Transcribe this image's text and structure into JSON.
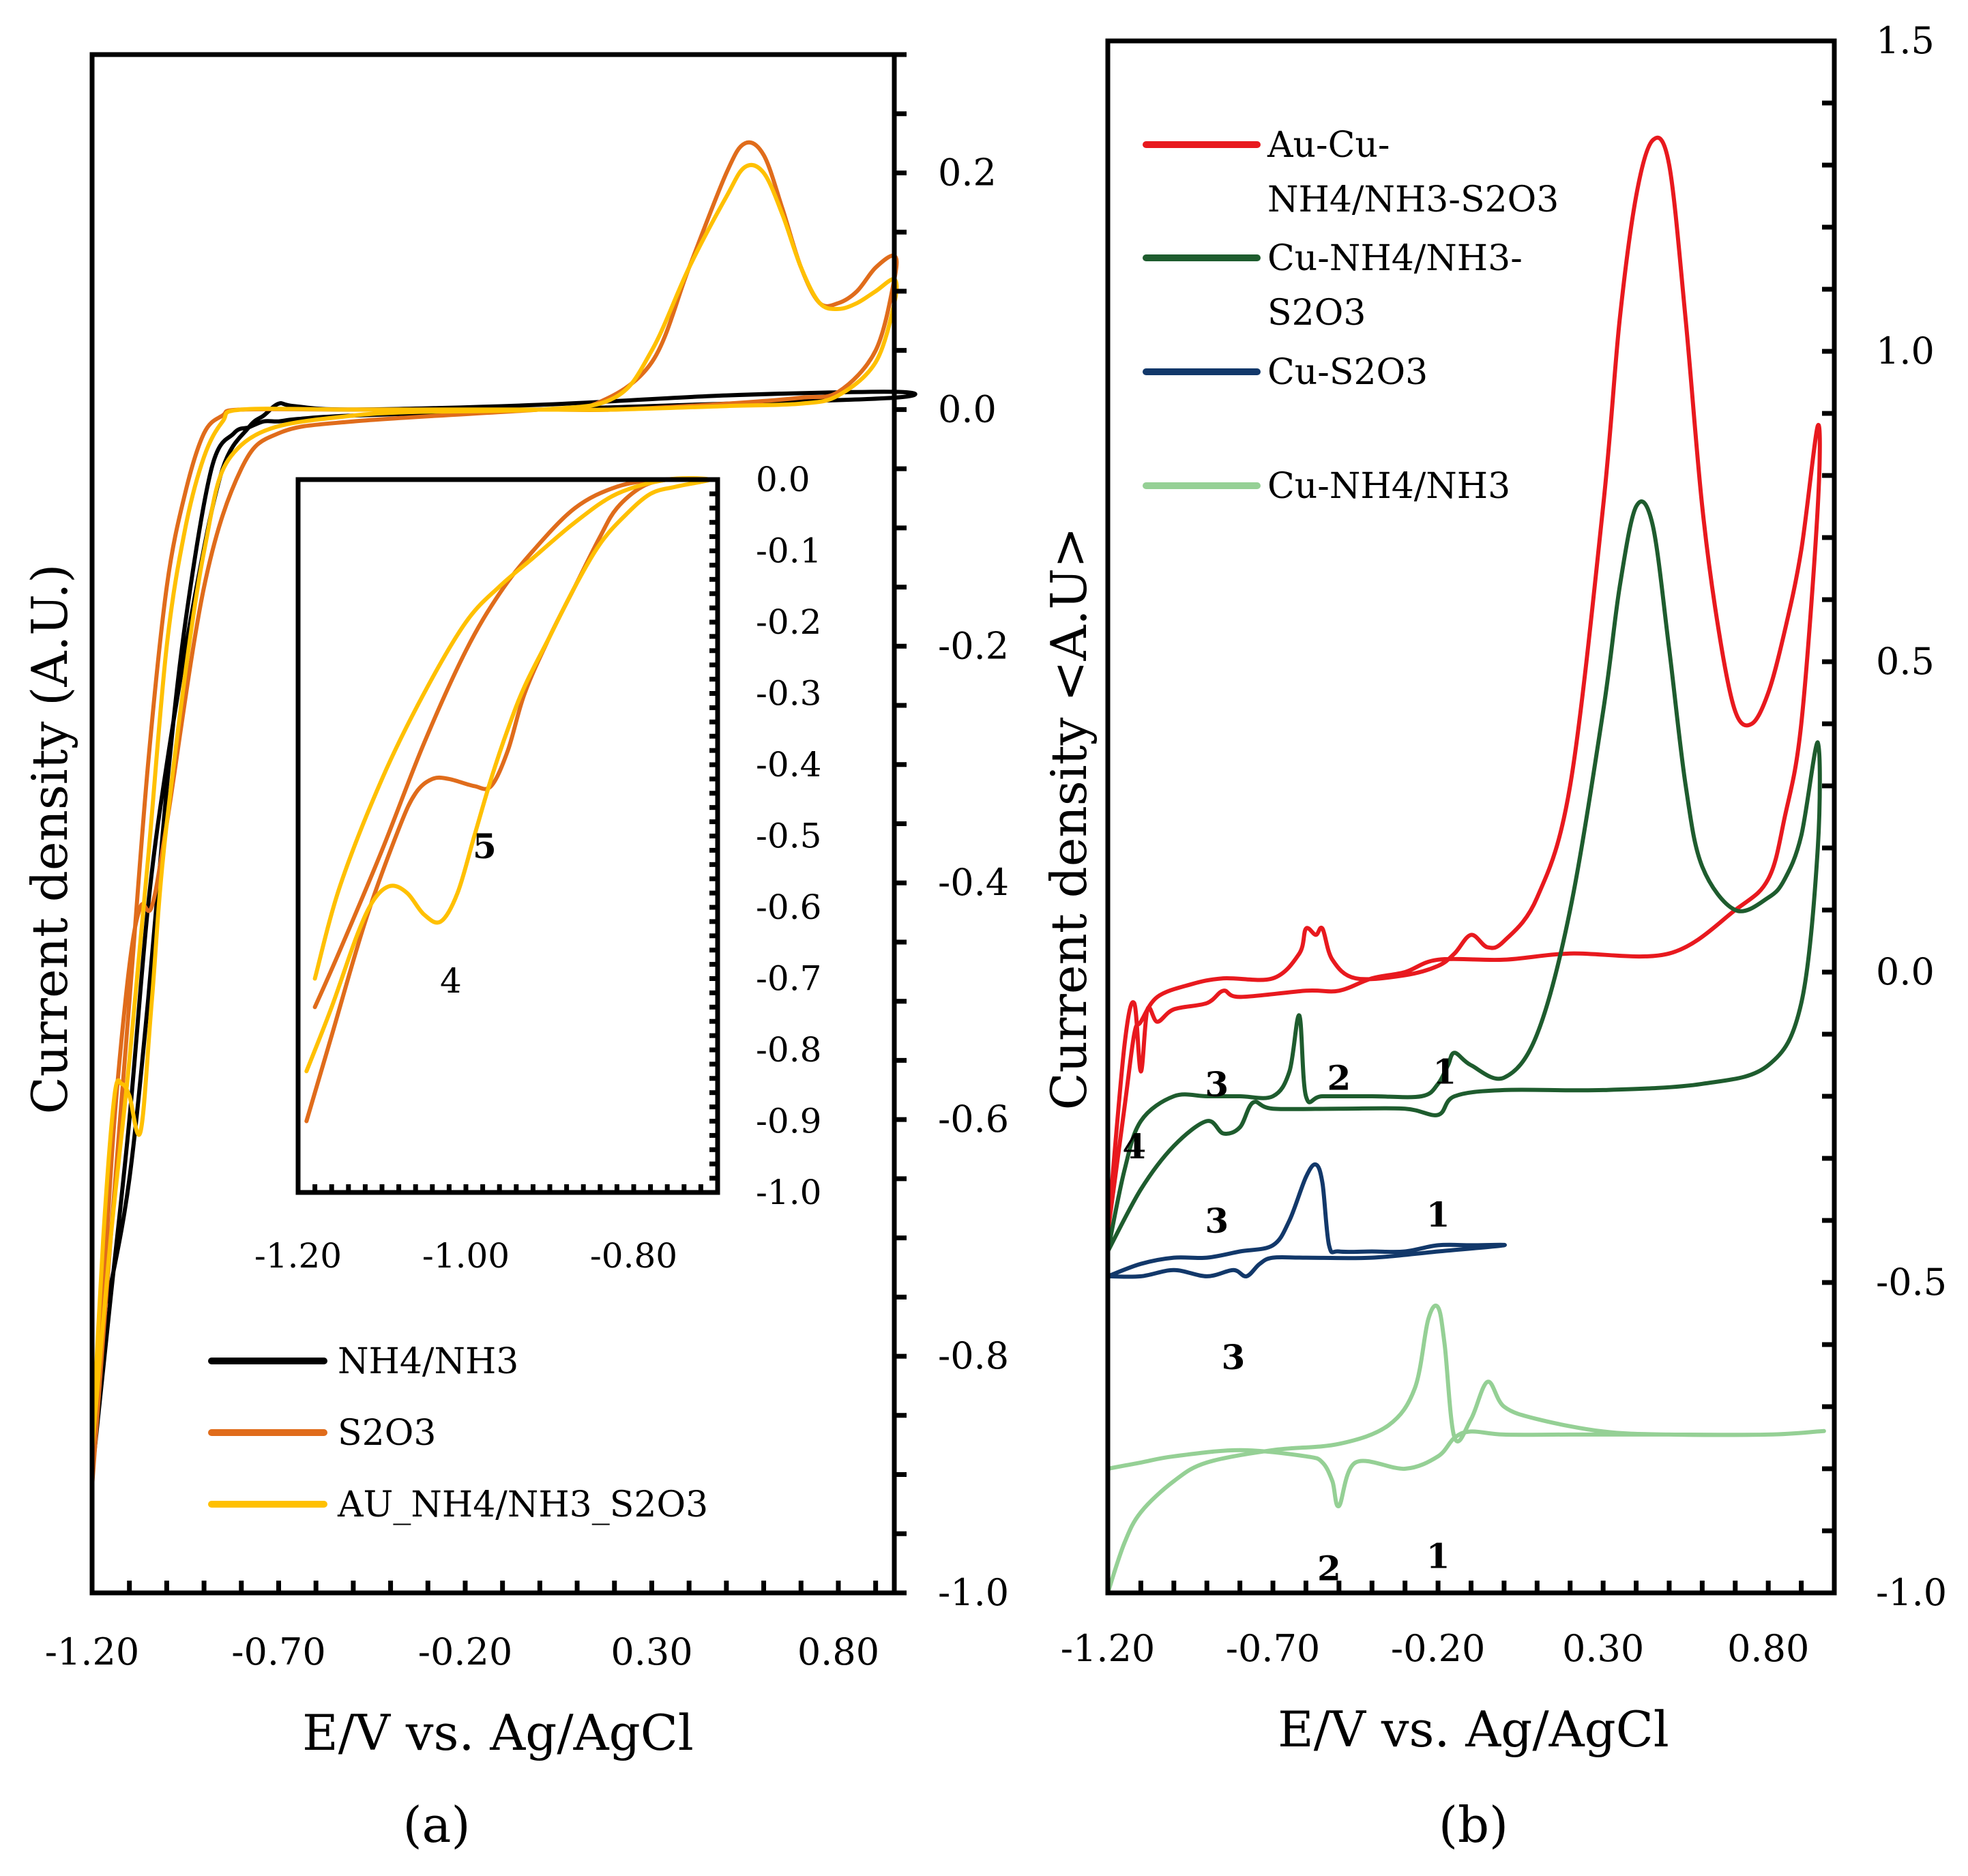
{
  "chart_data": [
    {
      "panel": "a",
      "type": "line",
      "caption": "(a)",
      "xlabel": "E/V vs. Ag/AgCl",
      "ylabel": "Current density (A.U.)",
      "xlim": [
        -1.2,
        0.95
      ],
      "ylim": [
        -1.0,
        0.3
      ],
      "x_ticks": [
        -1.2,
        -0.7,
        -0.2,
        0.3,
        0.8
      ],
      "x_tick_labels": [
        "-1.20",
        "-0.70",
        "-0.20",
        "0.30",
        "0.80"
      ],
      "y_ticks": [
        0.2,
        0.0,
        -0.2,
        -0.4,
        -0.6,
        -0.8,
        -1.0
      ],
      "y_tick_labels": [
        "0.2",
        "0.0",
        "-0.2",
        "-0.4",
        "-0.6",
        "-0.8",
        "-1.0"
      ],
      "y_axis_side": "right",
      "legend_position": "bottom-left",
      "series": [
        {
          "name": "NH4/NH3",
          "color": "#000000",
          "x": [
            -1.2,
            -1.18,
            -1.15,
            -1.1,
            -1.05,
            -1.0,
            -0.95,
            -0.88,
            -0.82,
            -0.78,
            -0.74,
            -0.7,
            -0.65,
            -0.5,
            0.0,
            0.5,
            0.95,
            0.95,
            0.5,
            0.0,
            -0.5,
            -0.66,
            -0.7,
            -0.74,
            -0.78,
            -0.85,
            -0.92,
            -1.0,
            -1.05,
            -1.1,
            -1.15,
            -1.2
          ],
          "y": [
            -0.9,
            -0.78,
            -0.74,
            -0.65,
            -0.5,
            -0.32,
            -0.18,
            -0.05,
            -0.02,
            -0.015,
            -0.01,
            -0.01,
            -0.008,
            -0.005,
            0.0,
            0.005,
            0.01,
            0.015,
            0.012,
            0.004,
            0.0,
            0.003,
            0.005,
            -0.005,
            -0.015,
            -0.05,
            -0.15,
            -0.3,
            -0.42,
            -0.6,
            -0.75,
            -0.9
          ]
        },
        {
          "name": "S2O3",
          "color": "#e06c1b",
          "x": [
            -1.2,
            -1.17,
            -1.14,
            -1.1,
            -1.07,
            -1.04,
            -1.0,
            -0.9,
            -0.8,
            -0.7,
            -0.5,
            0.0,
            0.15,
            0.3,
            0.4,
            0.5,
            0.55,
            0.6,
            0.65,
            0.7,
            0.75,
            0.8,
            0.85,
            0.9,
            0.95,
            0.95,
            0.9,
            0.8,
            0.7,
            0.5,
            0.2,
            0.0,
            -0.5,
            -0.8,
            -0.85,
            -0.9,
            -0.95,
            -1.0,
            -1.05,
            -1.1,
            -1.15,
            -1.2
          ],
          "y": [
            -0.91,
            -0.75,
            -0.6,
            -0.47,
            -0.42,
            -0.42,
            -0.35,
            -0.15,
            -0.05,
            -0.02,
            -0.01,
            0.0,
            0.005,
            0.04,
            0.12,
            0.2,
            0.225,
            0.215,
            0.17,
            0.12,
            0.09,
            0.09,
            0.1,
            0.12,
            0.13,
            0.11,
            0.05,
            0.015,
            0.01,
            0.005,
            0.0,
            0.0,
            0.0,
            0.0,
            -0.005,
            -0.02,
            -0.07,
            -0.15,
            -0.3,
            -0.5,
            -0.7,
            -0.91
          ]
        },
        {
          "name": "AU_NH4/NH3_S2O3",
          "color": "#ffc000",
          "x": [
            -1.2,
            -1.17,
            -1.14,
            -1.12,
            -1.1,
            -1.07,
            -1.04,
            -1.0,
            -0.9,
            -0.8,
            -0.5,
            0.0,
            0.2,
            0.3,
            0.4,
            0.5,
            0.55,
            0.6,
            0.65,
            0.7,
            0.75,
            0.8,
            0.85,
            0.9,
            0.95,
            0.95,
            0.9,
            0.8,
            0.7,
            0.5,
            0.2,
            0.0,
            -0.5,
            -0.8,
            -0.85,
            -0.9,
            -0.95,
            -1.0,
            -1.05,
            -1.1,
            -1.15,
            -1.2
          ],
          "y": [
            -0.88,
            -0.7,
            -0.58,
            -0.57,
            -0.58,
            -0.61,
            -0.5,
            -0.35,
            -0.12,
            -0.03,
            -0.005,
            0.0,
            0.01,
            0.05,
            0.12,
            0.18,
            0.205,
            0.2,
            0.165,
            0.12,
            0.09,
            0.085,
            0.09,
            0.1,
            0.11,
            0.09,
            0.04,
            0.012,
            0.005,
            0.003,
            0.0,
            0.0,
            0.0,
            0.0,
            -0.01,
            -0.04,
            -0.1,
            -0.2,
            -0.38,
            -0.55,
            -0.7,
            -0.88
          ]
        }
      ],
      "inset": {
        "xlim": [
          -1.2,
          -0.7
        ],
        "ylim": [
          -1.0,
          0.0
        ],
        "x_ticks": [
          -1.2,
          -1.0,
          -0.8
        ],
        "x_tick_labels": [
          "-1.20",
          "-1.00",
          "-0.80"
        ],
        "y_ticks": [
          0.0,
          -0.1,
          -0.2,
          -0.3,
          -0.4,
          -0.5,
          -0.6,
          -0.7,
          -0.8,
          -0.9,
          -1.0
        ],
        "y_tick_labels": [
          "0.0",
          "-0.1",
          "-0.2",
          "-0.3",
          "-0.4",
          "-0.5",
          "-0.6",
          "-0.7",
          "-0.8",
          "-0.9",
          "-1.0"
        ],
        "annotations": [
          {
            "text": "5",
            "x": -0.98,
            "y": -0.5
          },
          {
            "text": "4",
            "x": -1.02,
            "y": -0.68
          }
        ],
        "series": [
          {
            "name": "S2O3",
            "color": "#e06c1b",
            "x": [
              -1.19,
              -1.16,
              -1.12,
              -1.08,
              -1.06,
              -1.04,
              -1.02,
              -0.99,
              -0.97,
              -0.95,
              -0.93,
              -0.9,
              -0.87,
              -0.84,
              -0.82,
              -0.79,
              -0.76,
              -0.73,
              -0.71,
              -0.73,
              -0.77,
              -0.82,
              -0.87,
              -0.92,
              -0.96,
              -1.0,
              -1.05,
              -1.1,
              -1.15,
              -1.18
            ],
            "y": [
              -0.9,
              -0.78,
              -0.62,
              -0.49,
              -0.44,
              -0.42,
              -0.42,
              -0.43,
              -0.43,
              -0.38,
              -0.3,
              -0.22,
              -0.15,
              -0.08,
              -0.04,
              -0.01,
              0.0,
              0.0,
              0.0,
              0.0,
              0.0,
              -0.01,
              -0.04,
              -0.1,
              -0.16,
              -0.24,
              -0.37,
              -0.52,
              -0.66,
              -0.74
            ]
          },
          {
            "name": "AU_NH4/NH3_S2O3",
            "color": "#ffc000",
            "x": [
              -1.19,
              -1.16,
              -1.13,
              -1.11,
              -1.09,
              -1.07,
              -1.05,
              -1.03,
              -1.01,
              -0.99,
              -0.97,
              -0.95,
              -0.93,
              -0.9,
              -0.87,
              -0.84,
              -0.81,
              -0.78,
              -0.75,
              -0.71,
              -0.76,
              -0.82,
              -0.87,
              -0.92,
              -0.96,
              -1.0,
              -1.05,
              -1.1,
              -1.15,
              -1.18
            ],
            "y": [
              -0.83,
              -0.74,
              -0.64,
              -0.59,
              -0.57,
              -0.58,
              -0.61,
              -0.62,
              -0.58,
              -0.5,
              -0.42,
              -0.35,
              -0.29,
              -0.22,
              -0.15,
              -0.09,
              -0.05,
              -0.02,
              -0.01,
              0.0,
              0.0,
              -0.02,
              -0.06,
              -0.11,
              -0.15,
              -0.2,
              -0.3,
              -0.42,
              -0.57,
              -0.7
            ]
          }
        ]
      }
    },
    {
      "panel": "b",
      "type": "line",
      "caption": "(b)",
      "xlabel": "E/V vs. Ag/AgCl",
      "ylabel": "Current density <A.U>",
      "xlim": [
        -1.2,
        1.0
      ],
      "ylim": [
        -1.0,
        1.5
      ],
      "x_ticks": [
        -1.2,
        -0.7,
        -0.2,
        0.3,
        0.8
      ],
      "x_tick_labels": [
        "-1.20",
        "-0.70",
        "-0.20",
        "0.30",
        "0.80"
      ],
      "y_ticks": [
        1.5,
        1.0,
        0.5,
        0.0,
        -0.5,
        -1.0
      ],
      "y_tick_labels": [
        "1.5",
        "1.0",
        "0.5",
        "0.0",
        "-0.5",
        "-1.0"
      ],
      "y_axis_side": "right",
      "legend_position": "top-left",
      "annotations": [
        {
          "text": "3",
          "x": -0.87,
          "y": -0.18
        },
        {
          "text": "2",
          "x": -0.5,
          "y": -0.17
        },
        {
          "text": "1",
          "x": -0.18,
          "y": -0.16
        },
        {
          "text": "4",
          "x": -1.12,
          "y": -0.28
        },
        {
          "text": "3",
          "x": -0.87,
          "y": -0.4
        },
        {
          "text": "1",
          "x": -0.2,
          "y": -0.39
        },
        {
          "text": "3",
          "x": -0.82,
          "y": -0.62
        },
        {
          "text": "2",
          "x": -0.53,
          "y": -0.96
        },
        {
          "text": "1",
          "x": -0.2,
          "y": -0.94
        }
      ],
      "series": [
        {
          "name": "Au-Cu-NH4/NH3-S2O3",
          "color": "#e8191e",
          "x": [
            -1.2,
            -1.15,
            -1.12,
            -1.1,
            -1.05,
            -0.95,
            -0.85,
            -0.7,
            -0.62,
            -0.6,
            -0.57,
            -0.55,
            -0.52,
            -0.45,
            -0.3,
            -0.2,
            -0.15,
            -0.1,
            -0.05,
            0.0,
            0.1,
            0.2,
            0.3,
            0.35,
            0.4,
            0.45,
            0.5,
            0.55,
            0.6,
            0.65,
            0.7,
            0.75,
            0.8,
            0.85,
            0.9,
            0.95,
            0.95,
            0.9,
            0.85,
            0.8,
            0.7,
            0.5,
            0.2,
            0.0,
            -0.2,
            -0.3,
            -0.4,
            -0.5,
            -0.6,
            -0.8,
            -0.85,
            -0.9,
            -1.0,
            -1.05,
            -1.08,
            -1.1,
            -1.12,
            -1.15,
            -1.2
          ],
          "y": [
            -0.42,
            -0.22,
            -0.1,
            -0.08,
            -0.04,
            -0.02,
            -0.01,
            -0.01,
            0.03,
            0.07,
            0.06,
            0.07,
            0.02,
            -0.01,
            -0.005,
            0.01,
            0.03,
            0.06,
            0.04,
            0.05,
            0.12,
            0.3,
            0.75,
            1.05,
            1.25,
            1.34,
            1.3,
            1.05,
            0.75,
            0.55,
            0.42,
            0.4,
            0.45,
            0.55,
            0.68,
            0.88,
            0.75,
            0.4,
            0.25,
            0.15,
            0.1,
            0.03,
            0.03,
            0.02,
            0.02,
            0.0,
            -0.01,
            -0.03,
            -0.03,
            -0.04,
            -0.03,
            -0.05,
            -0.06,
            -0.08,
            -0.06,
            -0.16,
            -0.05,
            -0.12,
            -0.42
          ]
        },
        {
          "name": "Cu-NH4/NH3-S2O3",
          "color": "#1e5c2e",
          "x": [
            -1.2,
            -1.15,
            -1.1,
            -1.0,
            -0.9,
            -0.8,
            -0.7,
            -0.65,
            -0.62,
            -0.6,
            -0.55,
            -0.4,
            -0.25,
            -0.2,
            -0.17,
            -0.15,
            -0.1,
            0.0,
            0.1,
            0.2,
            0.3,
            0.35,
            0.4,
            0.45,
            0.5,
            0.55,
            0.6,
            0.7,
            0.8,
            0.85,
            0.9,
            0.95,
            0.95,
            0.9,
            0.8,
            0.6,
            0.3,
            0.0,
            -0.15,
            -0.2,
            -0.3,
            -0.5,
            -0.7,
            -0.76,
            -0.8,
            -0.85,
            -0.9,
            -1.0,
            -1.1,
            -1.2
          ],
          "y": [
            -0.45,
            -0.32,
            -0.24,
            -0.2,
            -0.2,
            -0.2,
            -0.2,
            -0.16,
            -0.07,
            -0.2,
            -0.2,
            -0.2,
            -0.2,
            -0.18,
            -0.15,
            -0.13,
            -0.15,
            -0.17,
            -0.1,
            0.1,
            0.42,
            0.62,
            0.75,
            0.72,
            0.52,
            0.3,
            0.17,
            0.1,
            0.12,
            0.15,
            0.22,
            0.37,
            0.2,
            -0.05,
            -0.15,
            -0.18,
            -0.19,
            -0.19,
            -0.2,
            -0.23,
            -0.22,
            -0.22,
            -0.22,
            -0.21,
            -0.25,
            -0.26,
            -0.24,
            -0.28,
            -0.35,
            -0.45
          ]
        },
        {
          "name": "Cu-S2O3",
          "color": "#12386a",
          "x": [
            -1.2,
            -1.1,
            -1.0,
            -0.9,
            -0.8,
            -0.7,
            -0.65,
            -0.6,
            -0.57,
            -0.55,
            -0.53,
            -0.5,
            -0.4,
            -0.3,
            -0.2,
            -0.1,
            0.0,
            -0.2,
            -0.4,
            -0.6,
            -0.7,
            -0.74,
            -0.78,
            -0.82,
            -0.9,
            -1.0,
            -1.1,
            -1.2
          ],
          "y": [
            -0.49,
            -0.47,
            -0.46,
            -0.46,
            -0.45,
            -0.44,
            -0.4,
            -0.33,
            -0.31,
            -0.34,
            -0.44,
            -0.45,
            -0.45,
            -0.45,
            -0.44,
            -0.44,
            -0.44,
            -0.45,
            -0.46,
            -0.46,
            -0.46,
            -0.47,
            -0.49,
            -0.48,
            -0.49,
            -0.48,
            -0.49,
            -0.49
          ]
        },
        {
          "name": "Cu-NH4/NH3",
          "color": "#95d095",
          "x": [
            -1.2,
            -1.15,
            -1.1,
            -1.0,
            -0.9,
            -0.7,
            -0.5,
            -0.35,
            -0.27,
            -0.23,
            -0.2,
            -0.18,
            -0.15,
            -0.1,
            -0.05,
            0.0,
            0.1,
            0.3,
            0.5,
            0.8,
            0.95,
            0.95,
            0.8,
            0.5,
            0.2,
            0.0,
            -0.1,
            -0.15,
            -0.2,
            -0.3,
            -0.45,
            -0.5,
            -0.52,
            -0.55,
            -0.6,
            -0.8,
            -1.0,
            -1.1,
            -1.2
          ],
          "y": [
            -1.0,
            -0.92,
            -0.87,
            -0.82,
            -0.79,
            -0.77,
            -0.76,
            -0.73,
            -0.67,
            -0.56,
            -0.54,
            -0.6,
            -0.75,
            -0.72,
            -0.66,
            -0.7,
            -0.72,
            -0.74,
            -0.745,
            -0.745,
            -0.74,
            -0.74,
            -0.745,
            -0.745,
            -0.745,
            -0.745,
            -0.74,
            -0.75,
            -0.78,
            -0.8,
            -0.79,
            -0.86,
            -0.82,
            -0.79,
            -0.78,
            -0.77,
            -0.78,
            -0.79,
            -0.8
          ]
        }
      ]
    }
  ]
}
